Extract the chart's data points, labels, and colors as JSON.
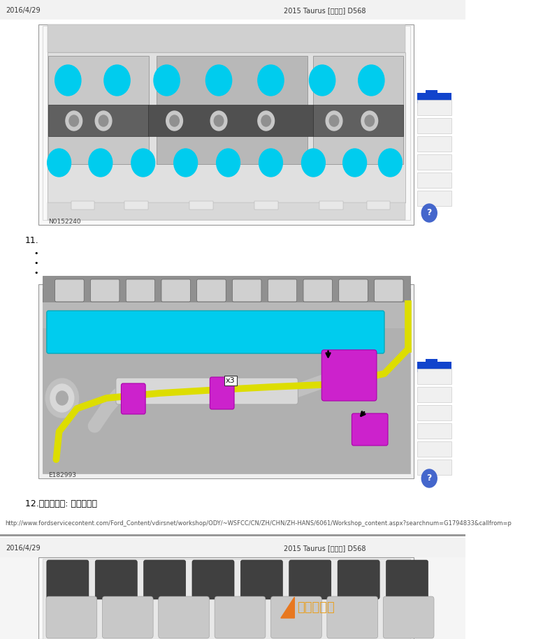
{
  "bg_color": "#ffffff",
  "header_left_1": "2016/4/29",
  "header_right_1": "2015 Taurus [金牛座] D568",
  "header_left_2": "2016/4/29",
  "header_right_2": "2015 Taurus [金牛座] D568",
  "item_11": "11.",
  "item_12": "12.　通用设备: 管夹拆装器",
  "url_text": "http://www.fordservicecontent.com/Ford_Content/vdirsnet/workshop/ODY/~WSFCC/CN/ZH/CHN/ZH-HANS/6061/Workshop_content.aspx?searchnum=G1794833&callfrom=p",
  "image1_label": "N0152240",
  "image2_label": "E182993",
  "text_color": "#000000",
  "header_font_size": 7,
  "body_font_size": 9,
  "url_font_size": 6.0,
  "watermark_text": "全汽修帮手",
  "watermark_color": "#e8a020",
  "divider_color": "#888888",
  "cyan_color": "#00ccee",
  "magenta_color": "#cc22cc",
  "yellow_color": "#dddd00",
  "sidebar_blue": "#1144cc",
  "sidebar_gray": "#e8e8e8",
  "qmark_color": "#4466cc",
  "img1_border": "#888888",
  "img2_border": "#888888",
  "img1_bg_light": "#f0f0f0",
  "img1_bg_dark": "#aaaaaa",
  "img2_bg": "#c8c8c8"
}
